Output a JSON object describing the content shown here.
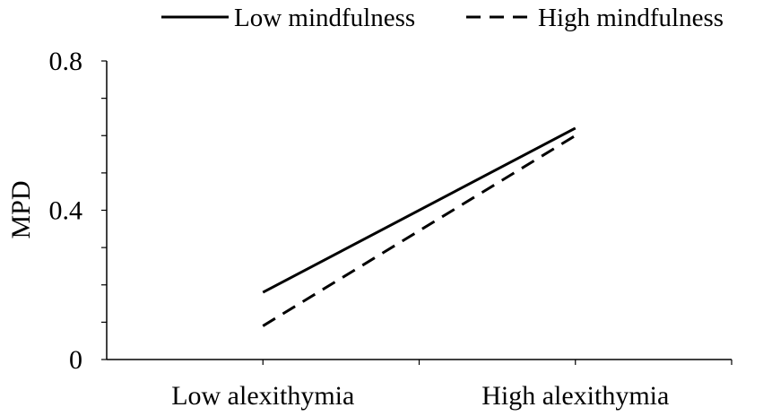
{
  "chart_data": {
    "type": "line",
    "title": "",
    "xlabel": "",
    "ylabel": "MPD",
    "categories": [
      "Low alexithymia",
      "High alexithymia"
    ],
    "ylim": [
      0,
      0.8
    ],
    "yticks": [
      0,
      0.4,
      0.8
    ],
    "ytick_labels": [
      "0",
      "0.4",
      "0.8"
    ],
    "grid": false,
    "legend_position": "top",
    "series": [
      {
        "name": "Low mindfulness",
        "style": "solid",
        "values": [
          0.18,
          0.62
        ]
      },
      {
        "name": "High mindfulness",
        "style": "dashed",
        "values": [
          0.09,
          0.6
        ]
      }
    ]
  },
  "colors": {
    "line": "#000000",
    "axis": "#000000",
    "background": "#ffffff"
  }
}
